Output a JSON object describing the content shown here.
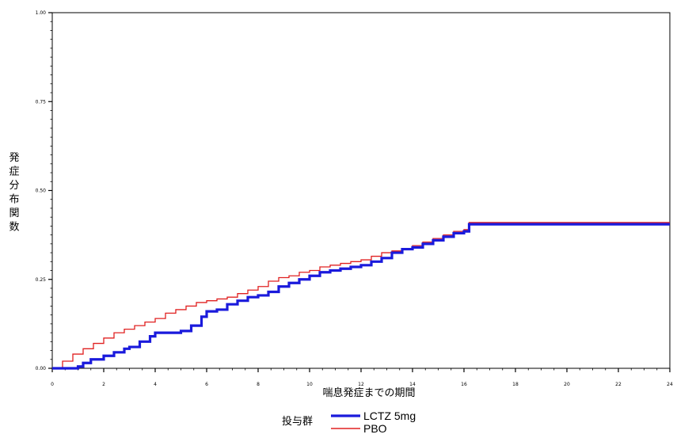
{
  "chart_data": {
    "type": "line",
    "step": true,
    "xlabel": "喘息発症までの期間",
    "ylabel": "発症分布関数",
    "xlim": [
      0,
      24
    ],
    "ylim": [
      0,
      1
    ],
    "x_ticks": [
      0,
      2,
      4,
      6,
      8,
      10,
      12,
      14,
      16,
      18,
      20,
      22,
      24
    ],
    "x_tick_labels": [
      "0",
      "2",
      "4",
      "6",
      "8",
      "10",
      "12",
      "14",
      "16",
      "18",
      "20",
      "22",
      "24"
    ],
    "y_ticks": [
      0,
      0.25,
      0.5,
      0.75,
      1.0
    ],
    "y_tick_labels": [
      "0.00",
      "0.25",
      "0.50",
      "0.75",
      "1.00"
    ],
    "grid": false,
    "legend": {
      "title": "投与群",
      "position": "bottom-center"
    },
    "series": [
      {
        "name": "LCTZ 5mg",
        "color": "#1a1adc",
        "x": [
          0,
          1.0,
          1.2,
          1.5,
          2.0,
          2.4,
          2.8,
          3.0,
          3.4,
          3.8,
          4.0,
          4.6,
          5.0,
          5.4,
          5.8,
          6.0,
          6.4,
          6.8,
          7.2,
          7.6,
          8.0,
          8.4,
          8.8,
          9.2,
          9.6,
          10.0,
          10.4,
          10.8,
          11.2,
          11.6,
          12.0,
          12.4,
          12.8,
          13.2,
          13.6,
          14.0,
          14.4,
          14.8,
          15.2,
          15.6,
          16.0,
          16.2,
          18.0,
          20.0,
          22.0,
          24.0
        ],
        "y": [
          0.0,
          0.005,
          0.015,
          0.025,
          0.035,
          0.045,
          0.055,
          0.06,
          0.075,
          0.09,
          0.1,
          0.1,
          0.105,
          0.12,
          0.145,
          0.16,
          0.165,
          0.18,
          0.19,
          0.2,
          0.205,
          0.215,
          0.23,
          0.24,
          0.25,
          0.26,
          0.27,
          0.275,
          0.28,
          0.285,
          0.29,
          0.3,
          0.31,
          0.325,
          0.335,
          0.34,
          0.35,
          0.36,
          0.37,
          0.38,
          0.385,
          0.405,
          0.405,
          0.405,
          0.405,
          0.405
        ]
      },
      {
        "name": "PBO",
        "color": "#e02020",
        "x": [
          0,
          0.4,
          0.8,
          1.2,
          1.6,
          2.0,
          2.4,
          2.8,
          3.2,
          3.6,
          4.0,
          4.4,
          4.8,
          5.2,
          5.6,
          6.0,
          6.4,
          6.8,
          7.2,
          7.6,
          8.0,
          8.4,
          8.8,
          9.2,
          9.6,
          10.0,
          10.4,
          10.8,
          11.2,
          11.6,
          12.0,
          12.4,
          12.8,
          13.2,
          13.6,
          14.0,
          14.4,
          14.8,
          15.2,
          15.6,
          16.0,
          16.2,
          18.0,
          20.0,
          22.0,
          24.0
        ],
        "y": [
          0.0,
          0.02,
          0.04,
          0.055,
          0.07,
          0.085,
          0.1,
          0.11,
          0.12,
          0.13,
          0.14,
          0.155,
          0.165,
          0.175,
          0.185,
          0.19,
          0.195,
          0.2,
          0.21,
          0.22,
          0.23,
          0.245,
          0.255,
          0.26,
          0.27,
          0.275,
          0.285,
          0.29,
          0.295,
          0.3,
          0.305,
          0.315,
          0.325,
          0.33,
          0.335,
          0.345,
          0.355,
          0.365,
          0.375,
          0.385,
          0.39,
          0.41,
          0.41,
          0.41,
          0.41,
          0.41
        ]
      }
    ]
  }
}
